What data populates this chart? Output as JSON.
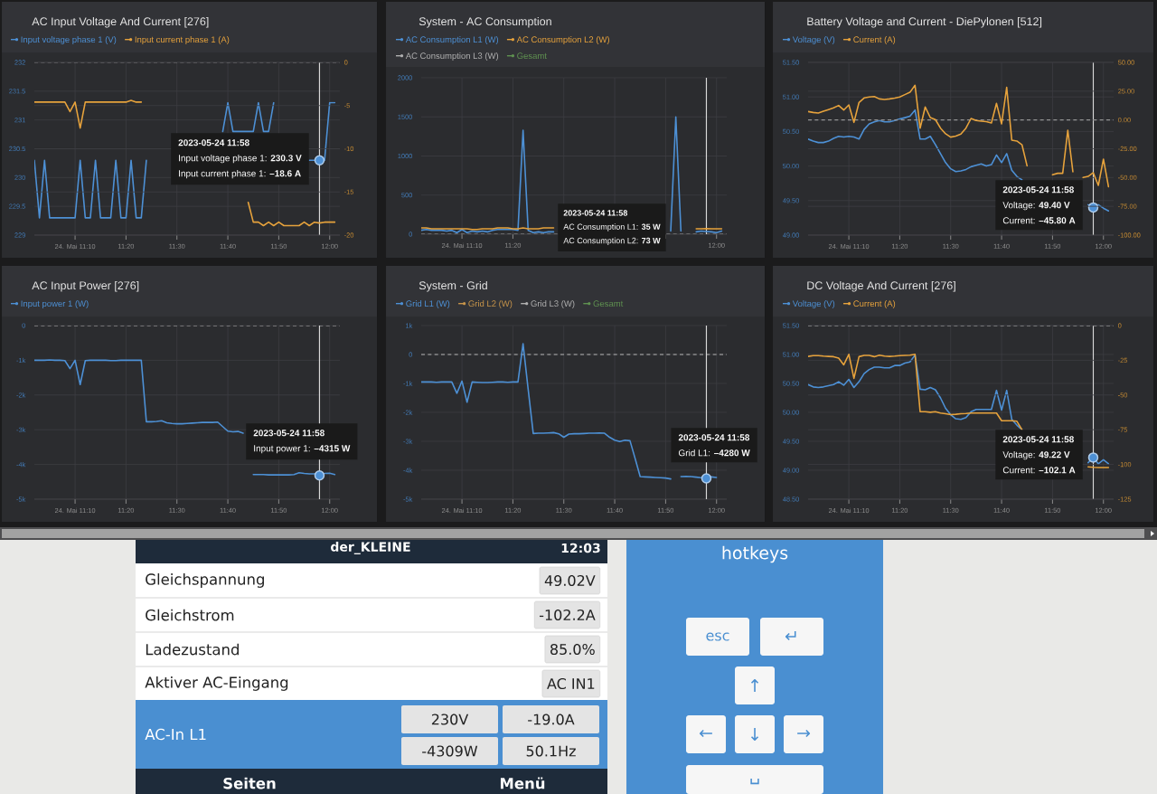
{
  "chart_data": [
    {
      "type": "line",
      "title": "AC Input Voltage And Current [276]",
      "legend": "top left",
      "grid": true,
      "x": [
        "2023-05-24T11:02",
        "2023-05-24T11:03",
        "2023-05-24T11:04",
        "2023-05-24T11:05",
        "2023-05-24T11:06",
        "2023-05-24T11:07",
        "2023-05-24T11:08",
        "2023-05-24T11:09",
        "2023-05-24T11:10",
        "2023-05-24T11:11",
        "2023-05-24T11:12",
        "2023-05-24T11:13",
        "2023-05-24T11:14",
        "2023-05-24T11:15",
        "2023-05-24T11:16",
        "2023-05-24T11:17",
        "2023-05-24T11:18",
        "2023-05-24T11:19",
        "2023-05-24T11:20",
        "2023-05-24T11:21",
        "2023-05-24T11:22",
        "2023-05-24T11:23",
        "2023-05-24T11:24",
        "2023-05-24T11:25",
        "2023-05-24T11:26",
        "2023-05-24T11:27",
        "2023-05-24T11:28",
        "2023-05-24T11:29",
        "2023-05-24T11:30",
        "2023-05-24T11:31",
        "2023-05-24T11:32",
        "2023-05-24T11:33",
        "2023-05-24T11:34",
        "2023-05-24T11:35",
        "2023-05-24T11:36",
        "2023-05-24T11:37",
        "2023-05-24T11:38",
        "2023-05-24T11:39",
        "2023-05-24T11:40",
        "2023-05-24T11:41",
        "2023-05-24T11:42",
        "2023-05-24T11:43",
        "2023-05-24T11:44",
        "2023-05-24T11:45",
        "2023-05-24T11:46",
        "2023-05-24T11:47",
        "2023-05-24T11:48",
        "2023-05-24T11:49",
        "2023-05-24T11:50",
        "2023-05-24T11:51",
        "2023-05-24T11:52",
        "2023-05-24T11:53",
        "2023-05-24T11:54",
        "2023-05-24T11:55",
        "2023-05-24T11:56",
        "2023-05-24T11:57",
        "2023-05-24T11:58",
        "2023-05-24T11:59",
        "2023-05-24T12:00",
        "2023-05-24T12:01"
      ],
      "xlim": [
        "2023-05-24T11:02",
        "2023-05-24T12:02"
      ],
      "xticks": [
        {
          "value": "2023-05-24T11:10",
          "label": "24. Mai 11:10"
        },
        {
          "value": "2023-05-24T11:20",
          "label": "11:20"
        },
        {
          "value": "2023-05-24T11:30",
          "label": "11:30"
        },
        {
          "value": "2023-05-24T11:40",
          "label": "11:40"
        },
        {
          "value": "2023-05-24T11:50",
          "label": "11:50"
        },
        {
          "value": "2023-05-24T12:00",
          "label": "12:00"
        }
      ],
      "ylim": [
        229,
        232
      ],
      "yticks": [
        229,
        229.5,
        230,
        230.5,
        231,
        231.5,
        232
      ],
      "y2lim": [
        -20,
        0
      ],
      "y2ticks": [
        -20,
        -15,
        -10,
        -5,
        0
      ],
      "series": [
        {
          "name": "Input voltage phase 1 (V)",
          "color": "#4d90d5",
          "values": [
            230.3,
            229.3,
            230.3,
            229.3,
            229.3,
            229.3,
            229.3,
            229.3,
            229.3,
            230.3,
            229.3,
            229.3,
            230.3,
            229.3,
            229.3,
            229.3,
            230.3,
            229.3,
            229.3,
            230.3,
            229.3,
            229.3,
            230.3,
            null,
            null,
            null,
            null,
            null,
            null,
            null,
            null,
            null,
            null,
            null,
            null,
            null,
            null,
            230.8,
            231.3,
            230.8,
            230.8,
            230.8,
            230.8,
            230.8,
            231.3,
            230.8,
            230.8,
            231.3,
            null,
            null,
            null,
            null,
            null,
            null,
            230.3,
            230.3,
            230.3,
            230.3,
            231.3,
            231.3
          ]
        },
        {
          "name": "Input current phase 1 (A)",
          "color": "#e6a23c",
          "axis": "y2",
          "values": [
            -4.6,
            -4.6,
            -4.6,
            -4.6,
            -4.6,
            -4.6,
            -4.6,
            -5.7,
            -4.6,
            -7.6,
            -4.6,
            -4.6,
            -4.6,
            -4.6,
            -4.6,
            -4.6,
            -4.6,
            -4.6,
            -4.6,
            -4.4,
            -4.6,
            -4.6,
            null,
            null,
            null,
            null,
            null,
            null,
            null,
            null,
            null,
            null,
            null,
            null,
            null,
            null,
            null,
            null,
            null,
            null,
            null,
            null,
            -16.2,
            -18.5,
            -18.5,
            -18.9,
            -18.5,
            -18.9,
            -18.5,
            -18.9,
            -18.9,
            -18.9,
            -18.9,
            -18.5,
            -18.9,
            -18.5,
            -18.6,
            -18.5,
            -18.5,
            -18.5
          ]
        }
      ],
      "ref_lines": [
        {
          "axis": "y2",
          "value": 0,
          "color": "#b4b4b4",
          "line_style": "dashed"
        },
        {
          "axis": "x",
          "value": "2023-05-24T11:58",
          "color": "#d9d9d9"
        }
      ],
      "annotations": [
        "2023-05-24 11:58",
        {
          "text": "Input voltage phase 1: **230.3 V**",
          "x": "2023-05-24T11:58",
          "y": 230.3
        },
        "Input current phase 1: **–18.6 A**"
      ]
    },
    {
      "type": "line",
      "title": "System - AC Consumption",
      "legend": "top left",
      "grid": true,
      "x": [
        "2023-05-24T11:02",
        "2023-05-24T11:03",
        "2023-05-24T11:04",
        "2023-05-24T11:05",
        "2023-05-24T11:06",
        "2023-05-24T11:07",
        "2023-05-24T11:08",
        "2023-05-24T11:09",
        "2023-05-24T11:10",
        "2023-05-24T11:11",
        "2023-05-24T11:12",
        "2023-05-24T11:13",
        "2023-05-24T11:14",
        "2023-05-24T11:15",
        "2023-05-24T11:16",
        "2023-05-24T11:17",
        "2023-05-24T11:18",
        "2023-05-24T11:19",
        "2023-05-24T11:20",
        "2023-05-24T11:21",
        "2023-05-24T11:22",
        "2023-05-24T11:23",
        "2023-05-24T11:24",
        "2023-05-24T11:25",
        "2023-05-24T11:26",
        "2023-05-24T11:27",
        "2023-05-24T11:28",
        "2023-05-24T11:29",
        "2023-05-24T11:30",
        "2023-05-24T11:31",
        "2023-05-24T11:32",
        "2023-05-24T11:33",
        "2023-05-24T11:34",
        "2023-05-24T11:35",
        "2023-05-24T11:36",
        "2023-05-24T11:37",
        "2023-05-24T11:38",
        "2023-05-24T11:39",
        "2023-05-24T11:40",
        "2023-05-24T11:41",
        "2023-05-24T11:42",
        "2023-05-24T11:43",
        "2023-05-24T11:44",
        "2023-05-24T11:45",
        "2023-05-24T11:46",
        "2023-05-24T11:47",
        "2023-05-24T11:48",
        "2023-05-24T11:49",
        "2023-05-24T11:50",
        "2023-05-24T11:51",
        "2023-05-24T11:52",
        "2023-05-24T11:53",
        "2023-05-24T11:54",
        "2023-05-24T11:55",
        "2023-05-24T11:56",
        "2023-05-24T11:57",
        "2023-05-24T11:58",
        "2023-05-24T11:59",
        "2023-05-24T12:00",
        "2023-05-24T12:01"
      ],
      "xlim": [
        "2023-05-24T11:02",
        "2023-05-24T12:02"
      ],
      "xticks": [
        {
          "value": "2023-05-24T11:10",
          "label": "24. Mai 11:10"
        },
        {
          "value": "2023-05-24T11:20",
          "label": "11:20"
        },
        {
          "value": "2023-05-24T11:30",
          "label": null
        },
        {
          "value": "2023-05-24T11:40",
          "label": null
        },
        {
          "value": "2023-05-24T11:50",
          "label": null
        },
        {
          "value": "2023-05-24T12:00",
          "label": "12:00"
        }
      ],
      "ylim": [
        0,
        2000
      ],
      "yticks": [
        0,
        500,
        1000,
        1500,
        2000
      ],
      "series": [
        {
          "name": "AC Consumption L1 (W)",
          "color": "#4d90d5",
          "values": [
            50,
            60,
            50,
            50,
            50,
            40,
            50,
            20,
            60,
            20,
            40,
            30,
            40,
            30,
            50,
            60,
            60,
            60,
            60,
            50,
            1330,
            50,
            20,
            30,
            20,
            30,
            30,
            null,
            null,
            null,
            null,
            null,
            null,
            null,
            null,
            null,
            null,
            null,
            null,
            null,
            null,
            null,
            null,
            null,
            null,
            null,
            null,
            null,
            null,
            40,
            1500,
            40,
            null,
            null,
            30,
            40,
            35,
            30,
            20,
            40
          ]
        },
        {
          "name": "AC Consumption L2 (W)",
          "color": "#e6a23c",
          "values": [
            80,
            80,
            70,
            70,
            70,
            70,
            70,
            70,
            70,
            70,
            60,
            60,
            70,
            70,
            70,
            80,
            80,
            80,
            70,
            70,
            80,
            70,
            70,
            70,
            80,
            80,
            80,
            null,
            null,
            null,
            null,
            null,
            null,
            null,
            null,
            null,
            null,
            null,
            null,
            null,
            null,
            null,
            null,
            null,
            null,
            null,
            null,
            null,
            null,
            null,
            null,
            null,
            null,
            null,
            70,
            70,
            73,
            70,
            70,
            70
          ]
        },
        {
          "name": "AC Consumption L3 (W)",
          "color": "#b0b0b0",
          "values": [
            null,
            null,
            null,
            null,
            null,
            null,
            null,
            null,
            null,
            null,
            null,
            null,
            null,
            null,
            null,
            null,
            null,
            null,
            null,
            null,
            null,
            null,
            null,
            null,
            null,
            null,
            null,
            null,
            null,
            null,
            null,
            null,
            null,
            null,
            null,
            null,
            null,
            null,
            null,
            null,
            null,
            null,
            null,
            null,
            null,
            null,
            null,
            null,
            null,
            null,
            null,
            null,
            null,
            null,
            null,
            null,
            null,
            null,
            null,
            null
          ]
        },
        {
          "name": "Gesamt",
          "color": "#5f9150",
          "values": [
            null,
            null,
            null,
            null,
            null,
            null,
            null,
            null,
            null,
            null,
            null,
            null,
            null,
            null,
            null,
            null,
            null,
            null,
            null,
            null,
            null,
            null,
            null,
            null,
            null,
            null,
            null,
            null,
            null,
            null,
            null,
            null,
            null,
            null,
            null,
            null,
            null,
            null,
            null,
            null,
            null,
            null,
            null,
            null,
            null,
            null,
            null,
            null,
            null,
            null,
            null,
            null,
            null,
            null,
            null,
            null,
            null,
            null,
            null,
            null
          ]
        }
      ],
      "ref_lines": [
        {
          "axis": "y",
          "value": 0,
          "color": "#b4b4b4",
          "line_style": "dashed"
        },
        {
          "axis": "x",
          "value": "2023-05-24T11:58",
          "color": "#d9d9d9"
        }
      ],
      "annotations": [
        "2023-05-24 11:58",
        "AC Consumption L1: **35 W**",
        "AC Consumption L2: **73 W**"
      ]
    },
    {
      "type": "line",
      "title": "Battery Voltage and Current - DiePylonen [512]",
      "legend": "top left",
      "grid": true,
      "x": [
        "2023-05-24T11:02",
        "2023-05-24T11:03",
        "2023-05-24T11:04",
        "2023-05-24T11:05",
        "2023-05-24T11:06",
        "2023-05-24T11:07",
        "2023-05-24T11:08",
        "2023-05-24T11:09",
        "2023-05-24T11:10",
        "2023-05-24T11:11",
        "2023-05-24T11:12",
        "2023-05-24T11:13",
        "2023-05-24T11:14",
        "2023-05-24T11:15",
        "2023-05-24T11:16",
        "2023-05-24T11:17",
        "2023-05-24T11:18",
        "2023-05-24T11:19",
        "2023-05-24T11:20",
        "2023-05-24T11:21",
        "2023-05-24T11:22",
        "2023-05-24T11:23",
        "2023-05-24T11:24",
        "2023-05-24T11:25",
        "2023-05-24T11:26",
        "2023-05-24T11:27",
        "2023-05-24T11:28",
        "2023-05-24T11:29",
        "2023-05-24T11:30",
        "2023-05-24T11:31",
        "2023-05-24T11:32",
        "2023-05-24T11:33",
        "2023-05-24T11:34",
        "2023-05-24T11:35",
        "2023-05-24T11:36",
        "2023-05-24T11:37",
        "2023-05-24T11:38",
        "2023-05-24T11:39",
        "2023-05-24T11:40",
        "2023-05-24T11:41",
        "2023-05-24T11:42",
        "2023-05-24T11:43",
        "2023-05-24T11:44",
        "2023-05-24T11:45",
        "2023-05-24T11:46",
        "2023-05-24T11:47",
        "2023-05-24T11:48",
        "2023-05-24T11:49",
        "2023-05-24T11:50",
        "2023-05-24T11:51",
        "2023-05-24T11:52",
        "2023-05-24T11:53",
        "2023-05-24T11:54",
        "2023-05-24T11:55",
        "2023-05-24T11:56",
        "2023-05-24T11:57",
        "2023-05-24T11:58",
        "2023-05-24T11:59",
        "2023-05-24T12:00",
        "2023-05-24T12:01"
      ],
      "xlim": [
        "2023-05-24T11:02",
        "2023-05-24T12:02"
      ],
      "xticks": [
        {
          "value": "2023-05-24T11:10",
          "label": "24. Mai 11:10"
        },
        {
          "value": "2023-05-24T11:20",
          "label": "11:20"
        },
        {
          "value": "2023-05-24T11:30",
          "label": "11:30"
        },
        {
          "value": "2023-05-24T11:40",
          "label": "11:40"
        },
        {
          "value": "2023-05-24T11:50",
          "label": "11:50"
        },
        {
          "value": "2023-05-24T12:00",
          "label": "12:00"
        }
      ],
      "ylim": [
        49,
        51.5
      ],
      "yticks": [
        {
          "value": 49,
          "label": "49.00"
        },
        {
          "value": 49.5,
          "label": "49.50"
        },
        {
          "value": 50,
          "label": "50.00"
        },
        {
          "value": 50.5,
          "label": "50.50"
        },
        {
          "value": 51,
          "label": "51.00"
        },
        {
          "value": 51.5,
          "label": "51.50"
        }
      ],
      "y2lim": [
        -100,
        50
      ],
      "y2ticks": [
        {
          "value": -100,
          "label": "-100.00"
        },
        {
          "value": -75,
          "label": "-75.00"
        },
        {
          "value": -50,
          "label": "-50.00"
        },
        {
          "value": -25,
          "label": "-25.00"
        },
        {
          "value": 0,
          "label": "0.00"
        },
        {
          "value": 25,
          "label": "25.00"
        },
        {
          "value": 50,
          "label": "50.00"
        }
      ],
      "series": [
        {
          "name": "Voltage (V)",
          "color": "#4d90d5",
          "values": [
            50.39,
            50.36,
            50.34,
            50.34,
            50.36,
            50.4,
            50.43,
            50.42,
            50.43,
            50.42,
            50.39,
            50.53,
            50.61,
            50.64,
            50.66,
            50.64,
            50.64,
            50.66,
            50.68,
            50.7,
            50.72,
            50.81,
            50.39,
            50.39,
            50.43,
            50.31,
            50.18,
            50.05,
            49.96,
            49.92,
            49.93,
            49.95,
            49.99,
            50.01,
            50.03,
            50.0,
            50.02,
            50.16,
            50.05,
            50.18,
            49.94,
            49.85,
            49.8,
            null,
            null,
            null,
            null,
            null,
            null,
            null,
            null,
            null,
            null,
            null,
            null,
            49.44,
            49.4,
            49.44,
            49.39,
            49.35
          ]
        },
        {
          "name": "Current (A)",
          "color": "#e6a23c",
          "axis": "y2",
          "values": [
            7.3,
            6.5,
            6.0,
            7.5,
            9.0,
            10.5,
            12.6,
            8.6,
            13.1,
            -2.1,
            15.2,
            19.1,
            20.0,
            20.4,
            18.3,
            17.8,
            18.3,
            19.0,
            20.0,
            22.0,
            24.0,
            30.1,
            -7.1,
            11.3,
            2.1,
            0.3,
            -7.1,
            -12.0,
            -14.9,
            -14.0,
            -12.3,
            -7.1,
            1.3,
            -0.5,
            -1.0,
            -1.5,
            -2.6,
            14.4,
            -3.4,
            28.3,
            -17.5,
            -18.3,
            -21.5,
            -39.8,
            null,
            null,
            null,
            null,
            -47.6,
            -46.3,
            -46.3,
            -8.9,
            -45.0,
            null,
            -50.0,
            -49.0,
            -45.8,
            -56.8,
            -34.0,
            -58.1
          ]
        }
      ],
      "ref_lines": [
        {
          "axis": "y2",
          "value": 0,
          "color": "#b4b4b4",
          "line_style": "dashed"
        },
        {
          "axis": "x",
          "value": "2023-05-24T11:58",
          "color": "#d9d9d9"
        }
      ],
      "annotations": [
        "2023-05-24 11:58",
        {
          "text": "Voltage: **49.40 V**",
          "x": "2023-05-24T11:58",
          "y": 49.4
        },
        "Current: **–45.80 A**"
      ]
    },
    {
      "type": "line",
      "title": "AC Input Power [276]",
      "legend": "top left",
      "grid": true,
      "x": [
        "2023-05-24T11:02",
        "2023-05-24T11:03",
        "2023-05-24T11:04",
        "2023-05-24T11:05",
        "2023-05-24T11:06",
        "2023-05-24T11:07",
        "2023-05-24T11:08",
        "2023-05-24T11:09",
        "2023-05-24T11:10",
        "2023-05-24T11:11",
        "2023-05-24T11:12",
        "2023-05-24T11:13",
        "2023-05-24T11:14",
        "2023-05-24T11:15",
        "2023-05-24T11:16",
        "2023-05-24T11:17",
        "2023-05-24T11:18",
        "2023-05-24T11:19",
        "2023-05-24T11:20",
        "2023-05-24T11:21",
        "2023-05-24T11:22",
        "2023-05-24T11:23",
        "2023-05-24T11:24",
        "2023-05-24T11:25",
        "2023-05-24T11:26",
        "2023-05-24T11:27",
        "2023-05-24T11:28",
        "2023-05-24T11:29",
        "2023-05-24T11:30",
        "2023-05-24T11:31",
        "2023-05-24T11:32",
        "2023-05-24T11:33",
        "2023-05-24T11:34",
        "2023-05-24T11:35",
        "2023-05-24T11:36",
        "2023-05-24T11:37",
        "2023-05-24T11:38",
        "2023-05-24T11:39",
        "2023-05-24T11:40",
        "2023-05-24T11:41",
        "2023-05-24T11:42",
        "2023-05-24T11:43",
        "2023-05-24T11:44",
        "2023-05-24T11:45",
        "2023-05-24T11:46",
        "2023-05-24T11:47",
        "2023-05-24T11:48",
        "2023-05-24T11:49",
        "2023-05-24T11:50",
        "2023-05-24T11:51",
        "2023-05-24T11:52",
        "2023-05-24T11:53",
        "2023-05-24T11:54",
        "2023-05-24T11:55",
        "2023-05-24T11:56",
        "2023-05-24T11:57",
        "2023-05-24T11:58",
        "2023-05-24T11:59",
        "2023-05-24T12:00",
        "2023-05-24T12:01"
      ],
      "xlim": [
        "2023-05-24T11:02",
        "2023-05-24T12:02"
      ],
      "xticks": [
        {
          "value": "2023-05-24T11:10",
          "label": "24. Mai 11:10"
        },
        {
          "value": "2023-05-24T11:20",
          "label": "11:20"
        },
        {
          "value": "2023-05-24T11:30",
          "label": "11:30"
        },
        {
          "value": "2023-05-24T11:40",
          "label": "11:40"
        },
        {
          "value": "2023-05-24T11:50",
          "label": "11:50"
        },
        {
          "value": "2023-05-24T12:00",
          "label": "12:00"
        }
      ],
      "ylim": [
        -5000,
        0
      ],
      "yticks": [
        {
          "value": -5000,
          "label": "-5k"
        },
        {
          "value": -4000,
          "label": "-4k"
        },
        {
          "value": -3000,
          "label": "-3k"
        },
        {
          "value": -2000,
          "label": "-2k"
        },
        {
          "value": -1000,
          "label": "-1k"
        },
        0
      ],
      "series": [
        {
          "name": "Input power 1 (W)",
          "color": "#4d90d5",
          "values": [
            -1000,
            -1000,
            -1000,
            -990,
            -1000,
            -1000,
            -1010,
            -1240,
            -1000,
            -1700,
            -1010,
            -1000,
            -1000,
            -1000,
            -1000,
            -1010,
            -1010,
            -1000,
            -1000,
            -1000,
            -1000,
            -1000,
            -2770,
            -2770,
            -2760,
            -2740,
            -2800,
            -2820,
            -2830,
            -2830,
            -2820,
            -2810,
            -2800,
            -2790,
            -2790,
            -2790,
            -2780,
            -2910,
            -3040,
            -3060,
            -3050,
            -3100,
            null,
            -4290,
            -4290,
            -4290,
            -4300,
            -4300,
            -4300,
            -4300,
            -4300,
            -4290,
            -4240,
            -4260,
            -4270,
            -4270,
            -4315,
            -4260,
            -4250,
            -4290
          ]
        }
      ],
      "ref_lines": [
        {
          "axis": "y",
          "value": 0,
          "color": "#b4b4b4",
          "line_style": "dashed"
        },
        {
          "axis": "x",
          "value": "2023-05-24T11:58",
          "color": "#d9d9d9"
        }
      ],
      "annotations": [
        "2023-05-24 11:58",
        {
          "text": "Input power 1: **–4315 W**",
          "x": "2023-05-24T11:58",
          "y": -4315
        }
      ]
    },
    {
      "type": "line",
      "title": "System - Grid",
      "legend": "top left",
      "grid": true,
      "x": [
        "2023-05-24T11:02",
        "2023-05-24T11:03",
        "2023-05-24T11:04",
        "2023-05-24T11:05",
        "2023-05-24T11:06",
        "2023-05-24T11:07",
        "2023-05-24T11:08",
        "2023-05-24T11:09",
        "2023-05-24T11:10",
        "2023-05-24T11:11",
        "2023-05-24T11:12",
        "2023-05-24T11:13",
        "2023-05-24T11:14",
        "2023-05-24T11:15",
        "2023-05-24T11:16",
        "2023-05-24T11:17",
        "2023-05-24T11:18",
        "2023-05-24T11:19",
        "2023-05-24T11:20",
        "2023-05-24T11:21",
        "2023-05-24T11:22",
        "2023-05-24T11:23",
        "2023-05-24T11:24",
        "2023-05-24T11:25",
        "2023-05-24T11:26",
        "2023-05-24T11:27",
        "2023-05-24T11:28",
        "2023-05-24T11:29",
        "2023-05-24T11:30",
        "2023-05-24T11:31",
        "2023-05-24T11:32",
        "2023-05-24T11:33",
        "2023-05-24T11:34",
        "2023-05-24T11:35",
        "2023-05-24T11:36",
        "2023-05-24T11:37",
        "2023-05-24T11:38",
        "2023-05-24T11:39",
        "2023-05-24T11:40",
        "2023-05-24T11:41",
        "2023-05-24T11:42",
        "2023-05-24T11:43",
        "2023-05-24T11:44",
        "2023-05-24T11:45",
        "2023-05-24T11:46",
        "2023-05-24T11:47",
        "2023-05-24T11:48",
        "2023-05-24T11:49",
        "2023-05-24T11:50",
        "2023-05-24T11:51",
        "2023-05-24T11:52",
        "2023-05-24T11:53",
        "2023-05-24T11:54",
        "2023-05-24T11:55",
        "2023-05-24T11:56",
        "2023-05-24T11:57",
        "2023-05-24T11:58",
        "2023-05-24T11:59",
        "2023-05-24T12:00"
      ],
      "xlim": [
        "2023-05-24T11:02",
        "2023-05-24T12:02"
      ],
      "xticks": [
        {
          "value": "2023-05-24T11:10",
          "label": "24. Mai 11:10"
        },
        {
          "value": "2023-05-24T11:20",
          "label": "11:20"
        },
        {
          "value": "2023-05-24T11:30",
          "label": "11:30"
        },
        {
          "value": "2023-05-24T11:40",
          "label": "11:40"
        },
        {
          "value": "2023-05-24T11:50",
          "label": "11:50"
        },
        {
          "value": "2023-05-24T12:00",
          "label": "12:00"
        }
      ],
      "ylim": [
        -5000,
        1000
      ],
      "yticks": [
        {
          "value": -5000,
          "label": "-5k"
        },
        {
          "value": -4000,
          "label": "-4k"
        },
        {
          "value": -3000,
          "label": "-3k"
        },
        {
          "value": -2000,
          "label": "-2k"
        },
        {
          "value": -1000,
          "label": "-1k"
        },
        0,
        {
          "value": 1000,
          "label": "1k"
        }
      ],
      "series": [
        {
          "name": "Grid L1 (W)",
          "color": "#4d90d5",
          "values": [
            -950,
            -950,
            -950,
            -960,
            -950,
            -950,
            -950,
            -1340,
            -920,
            -1650,
            -950,
            -960,
            -970,
            -970,
            -960,
            -950,
            -950,
            -960,
            -950,
            -950,
            370,
            -1200,
            -2730,
            -2720,
            -2720,
            -2710,
            -2700,
            -2740,
            -2860,
            -2750,
            -2740,
            -2740,
            -2730,
            -2720,
            -2720,
            -2710,
            -2720,
            -2860,
            -2960,
            -3010,
            -2960,
            -2980,
            -3590,
            -4220,
            -4230,
            -4240,
            -4250,
            -4260,
            -4270,
            -4300,
            null,
            -4220,
            -4210,
            -4220,
            -4240,
            -4260,
            -4280,
            -4230,
            -4250
          ]
        },
        {
          "name": "Grid L2 (W)",
          "color": "#c8954a",
          "values": [
            null,
            null,
            null,
            null,
            null,
            null,
            null,
            null,
            null,
            null,
            null,
            null,
            null,
            null,
            null,
            null,
            null,
            null,
            null,
            null,
            null,
            null,
            null,
            null,
            null,
            null,
            null,
            null,
            null,
            null,
            null,
            null,
            null,
            null,
            null,
            null,
            null,
            null,
            null,
            null,
            null,
            null,
            null,
            null,
            null,
            null,
            null,
            null,
            null,
            null,
            null,
            null,
            null,
            null,
            null,
            null,
            null,
            null,
            null
          ]
        },
        {
          "name": "Grid L3 (W)",
          "color": "#b0b0b0",
          "values": [
            null,
            null,
            null,
            null,
            null,
            null,
            null,
            null,
            null,
            null,
            null,
            null,
            null,
            null,
            null,
            null,
            null,
            null,
            null,
            null,
            null,
            null,
            null,
            null,
            null,
            null,
            null,
            null,
            null,
            null,
            null,
            null,
            null,
            null,
            null,
            null,
            null,
            null,
            null,
            null,
            null,
            null,
            null,
            null,
            null,
            null,
            null,
            null,
            null,
            null,
            null,
            null,
            null,
            null,
            null,
            null,
            null,
            null,
            null
          ]
        },
        {
          "name": "Gesamt",
          "color": "#5f9150",
          "values": [
            null,
            null,
            null,
            null,
            null,
            null,
            null,
            null,
            null,
            null,
            null,
            null,
            null,
            null,
            null,
            null,
            null,
            null,
            null,
            null,
            null,
            null,
            null,
            null,
            null,
            null,
            null,
            null,
            null,
            null,
            null,
            null,
            null,
            null,
            null,
            null,
            null,
            null,
            null,
            null,
            null,
            null,
            null,
            null,
            null,
            null,
            null,
            null,
            null,
            null,
            null,
            null,
            null,
            null,
            null,
            null,
            null,
            null,
            null
          ]
        }
      ],
      "ref_lines": [
        {
          "axis": "y",
          "value": 0,
          "color": "#b4b4b4",
          "line_style": "dashed"
        },
        {
          "axis": "x",
          "value": "2023-05-24T11:58",
          "color": "#d9d9d9"
        }
      ],
      "annotations": [
        "2023-05-24 11:58",
        {
          "text": "Grid L1: **–4280 W**",
          "x": "2023-05-24T11:58",
          "y": -4280
        }
      ]
    },
    {
      "type": "line",
      "title": "DC Voltage And Current [276]",
      "legend": "top left",
      "grid": true,
      "x": [
        "2023-05-24T11:02",
        "2023-05-24T11:03",
        "2023-05-24T11:04",
        "2023-05-24T11:05",
        "2023-05-24T11:06",
        "2023-05-24T11:07",
        "2023-05-24T11:08",
        "2023-05-24T11:09",
        "2023-05-24T11:10",
        "2023-05-24T11:11",
        "2023-05-24T11:12",
        "2023-05-24T11:13",
        "2023-05-24T11:14",
        "2023-05-24T11:15",
        "2023-05-24T11:16",
        "2023-05-24T11:17",
        "2023-05-24T11:18",
        "2023-05-24T11:19",
        "2023-05-24T11:20",
        "2023-05-24T11:21",
        "2023-05-24T11:22",
        "2023-05-24T11:23",
        "2023-05-24T11:24",
        "2023-05-24T11:25",
        "2023-05-24T11:26",
        "2023-05-24T11:27",
        "2023-05-24T11:28",
        "2023-05-24T11:29",
        "2023-05-24T11:30",
        "2023-05-24T11:31",
        "2023-05-24T11:32",
        "2023-05-24T11:33",
        "2023-05-24T11:34",
        "2023-05-24T11:35",
        "2023-05-24T11:36",
        "2023-05-24T11:37",
        "2023-05-24T11:38",
        "2023-05-24T11:39",
        "2023-05-24T11:40",
        "2023-05-24T11:41",
        "2023-05-24T11:42",
        "2023-05-24T11:43",
        "2023-05-24T11:44",
        "2023-05-24T11:45",
        "2023-05-24T11:46",
        "2023-05-24T11:47",
        "2023-05-24T11:48",
        "2023-05-24T11:49",
        "2023-05-24T11:50",
        "2023-05-24T11:51",
        "2023-05-24T11:52",
        "2023-05-24T11:53",
        "2023-05-24T11:54",
        "2023-05-24T11:55",
        "2023-05-24T11:56",
        "2023-05-24T11:57",
        "2023-05-24T11:58",
        "2023-05-24T11:59",
        "2023-05-24T12:00",
        "2023-05-24T12:01"
      ],
      "xlim": [
        "2023-05-24T11:02",
        "2023-05-24T12:02"
      ],
      "xticks": [
        {
          "value": "2023-05-24T11:10",
          "label": "24. Mai 11:10"
        },
        {
          "value": "2023-05-24T11:20",
          "label": "11:20"
        },
        {
          "value": "2023-05-24T11:30",
          "label": "11:30"
        },
        {
          "value": "2023-05-24T11:40",
          "label": "11:40"
        },
        {
          "value": "2023-05-24T11:50",
          "label": "11:50"
        },
        {
          "value": "2023-05-24T12:00",
          "label": "12:00"
        }
      ],
      "ylim": [
        48.5,
        51.5
      ],
      "yticks": [
        {
          "value": 48.5,
          "label": "48.50"
        },
        {
          "value": 49,
          "label": "49.00"
        },
        {
          "value": 49.5,
          "label": "49.50"
        },
        {
          "value": 50,
          "label": "50.00"
        },
        {
          "value": 50.5,
          "label": "50.50"
        },
        {
          "value": 51,
          "label": "51.00"
        },
        {
          "value": 51.5,
          "label": "51.50"
        }
      ],
      "y2lim": [
        -125,
        0
      ],
      "y2ticks": [
        -125,
        -100,
        -75,
        -50,
        -25,
        0
      ],
      "series": [
        {
          "name": "Voltage (V)",
          "color": "#4d90d5",
          "values": [
            50.48,
            50.44,
            50.43,
            50.44,
            50.46,
            50.48,
            50.53,
            50.47,
            50.57,
            50.43,
            50.53,
            50.67,
            50.74,
            50.78,
            50.78,
            50.77,
            50.77,
            50.81,
            50.81,
            50.85,
            50.87,
            50.99,
            50.4,
            50.39,
            50.43,
            50.39,
            50.25,
            50.07,
            49.96,
            49.89,
            49.88,
            49.91,
            50.01,
            50.05,
            50.05,
            50.05,
            50.05,
            50.38,
            50.04,
            50.38,
            49.88,
            49.78,
            49.7,
            null,
            null,
            null,
            null,
            null,
            null,
            null,
            null,
            null,
            null,
            null,
            null,
            49.13,
            49.22,
            49.11,
            49.18,
            49.11
          ]
        },
        {
          "name": "Current (A)",
          "color": "#e6a23c",
          "axis": "y2",
          "values": [
            -22.2,
            -21.7,
            -21.7,
            -22.0,
            -22.2,
            -22.4,
            -23.5,
            -28.3,
            -20.7,
            -38.0,
            -22.4,
            -21.5,
            -21.5,
            -22.4,
            -21.3,
            -22.0,
            -22.2,
            -22.0,
            -21.7,
            -21.5,
            -21.3,
            -20.7,
            -62.0,
            -62.0,
            -62.4,
            -62.0,
            -63.0,
            -63.5,
            -64.1,
            -63.9,
            -63.5,
            -63.3,
            -63.0,
            -63.0,
            -63.0,
            -63.0,
            -63.0,
            -63.0,
            -68.5,
            -68.5,
            -68.5,
            -68.9,
            -75.0,
            null,
            null,
            null,
            null,
            null,
            null,
            null,
            null,
            null,
            null,
            null,
            null,
            -101.7,
            -102.1,
            -102.2,
            -102.2,
            -102.2
          ]
        }
      ],
      "ref_lines": [
        {
          "axis": "y2",
          "value": 0,
          "color": "#b4b4b4",
          "line_style": "dashed"
        },
        {
          "axis": "x",
          "value": "2023-05-24T11:58",
          "color": "#d9d9d9"
        }
      ],
      "annotations": [
        "2023-05-24 11:58",
        {
          "text": "Voltage: **49.22 V**",
          "x": "2023-05-24T11:58",
          "y": 49.22
        },
        "Current: **–102.1 A**"
      ]
    },
    {
      "type": "other",
      "title": "der_KLEINE",
      "annotations": [
        "12:03",
        "Gleichspannung",
        "49.02V",
        "Gleichstrom",
        "-102.2A",
        "Ladezustand",
        "85.0%",
        "Aktiver AC-Eingang",
        "AC IN1",
        "AC-In L1",
        "230V",
        "-19.0A",
        "-4309W",
        "50.1Hz",
        "Seiten",
        "Menü",
        "hotkeys",
        "esc",
        "↵",
        "↑",
        "←",
        "↓",
        "→",
        "␣"
      ]
    }
  ]
}
